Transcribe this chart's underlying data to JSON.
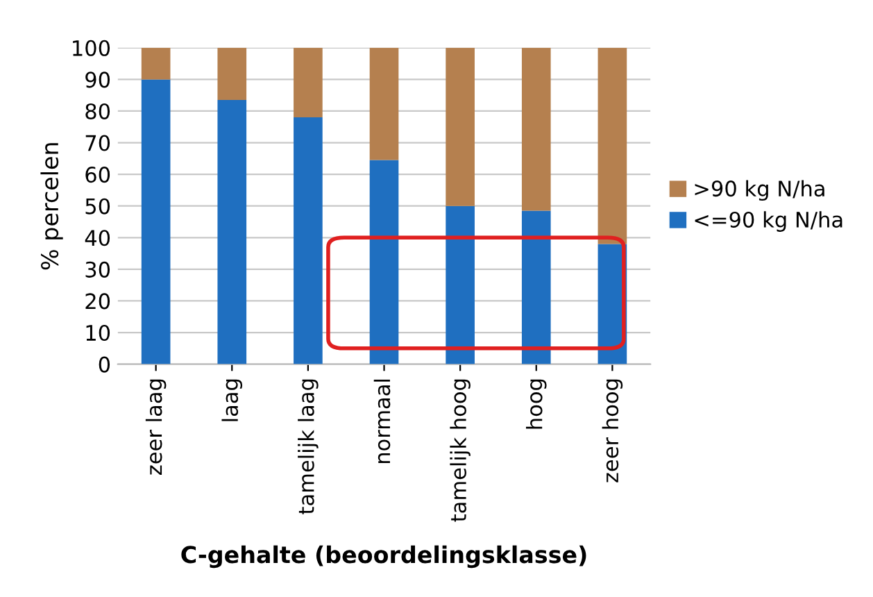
{
  "chart_data": {
    "type": "bar",
    "stacked": true,
    "xlabel": "C-gehalte (beoordelingsklasse)",
    "ylabel": "% percelen",
    "categories": [
      "zeer laag",
      "laag",
      "tamelijk laag",
      "normaal",
      "tamelijk hoog",
      "hoog",
      "zeer hoog"
    ],
    "series": [
      {
        "name": "<=90 kg N/ha",
        "color": "#1f6fc0",
        "values": [
          90,
          83.5,
          78,
          64.5,
          50,
          48.5,
          38
        ]
      },
      {
        "name": ">90 kg N/ha",
        "color": "#b5804f",
        "values": [
          10,
          16.5,
          22,
          35.5,
          50,
          51.5,
          62
        ]
      }
    ],
    "ylim": [
      0,
      100
    ],
    "yticks": [
      0,
      10,
      20,
      30,
      40,
      50,
      60,
      70,
      80,
      90,
      100
    ],
    "grid": "y",
    "legend": "right"
  }
}
